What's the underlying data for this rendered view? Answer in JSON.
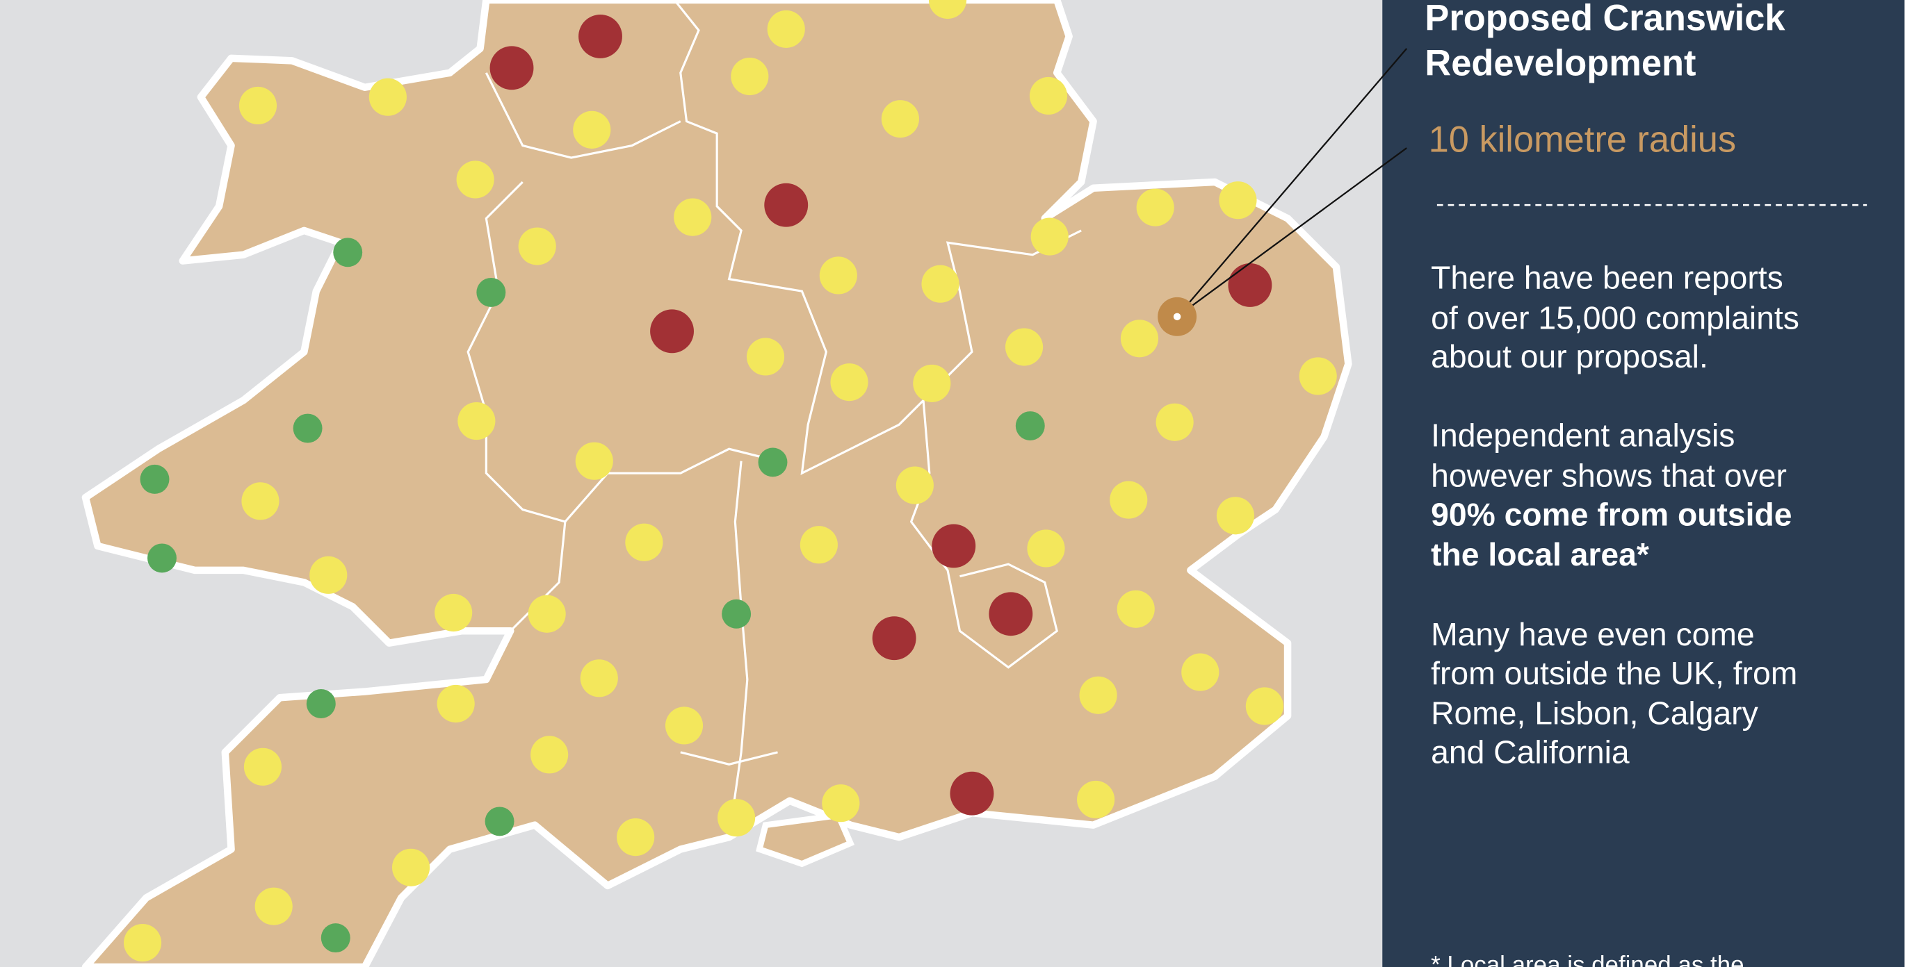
{
  "panel": {
    "title": [
      "Proposed Cranswick",
      "Redevelopment"
    ],
    "subtitle": "10 kilometre radius",
    "paragraphs": [
      [
        "There have been reports",
        "of over 15,000 complaints",
        "about our proposal."
      ],
      [
        "Independent analysis",
        "however shows that over",
        "90% come from outside",
        "the local area*"
      ],
      [
        "Many have even come",
        "from outside the UK, from",
        "Rome, Lisbon, Calgary",
        "and California"
      ]
    ],
    "footnote": "* Local area is defined as the"
  }
}
